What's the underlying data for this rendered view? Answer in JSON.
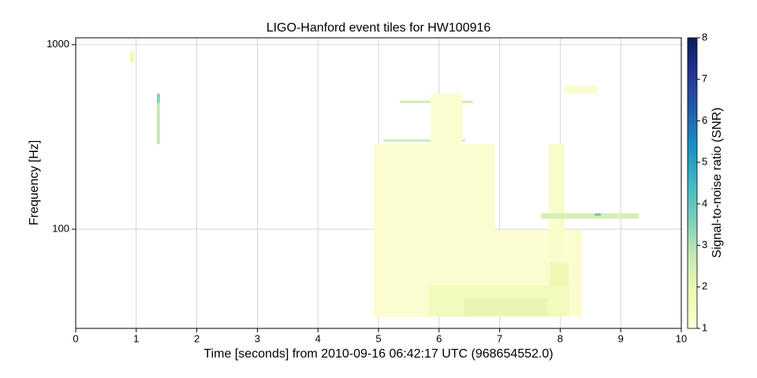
{
  "chart_data": {
    "type": "tiles",
    "title": "LIGO-Hanford event tiles for HW100916",
    "xlabel": "Time [seconds] from 2010-09-16 06:42:17 UTC (968654552.0)",
    "ylabel": "Frequency [Hz]",
    "xlim": [
      0,
      10
    ],
    "xticks": [
      0,
      1,
      2,
      3,
      4,
      5,
      6,
      7,
      8,
      9,
      10
    ],
    "ylim": [
      29,
      1090
    ],
    "yscale": "log",
    "yticks": [
      100,
      1000
    ],
    "grid": true,
    "colorbar_label": "Signal-to-noise ratio (SNR)",
    "clim": [
      1,
      8
    ],
    "cticks": [
      1,
      2,
      3,
      4,
      5,
      6,
      7,
      8
    ],
    "colormap": [
      "#ffffd9",
      "#edf8b1",
      "#c7e9b4",
      "#7fcdbb",
      "#41b6c4",
      "#1d91c0",
      "#225ea8",
      "#253494",
      "#081d58"
    ],
    "tiles": [
      {
        "tstart": 5.35,
        "tend": 6.56,
        "fmin": 483,
        "fmax": 497,
        "snr": 2.5
      },
      {
        "tstart": 5.08,
        "tend": 6.43,
        "fmin": 298,
        "fmax": 307,
        "snr": 2.6
      },
      {
        "tstart": 4.92,
        "tend": 6.92,
        "fmin": 33.5,
        "fmax": 289,
        "snr": 1.2
      },
      {
        "tstart": 5.86,
        "tend": 6.38,
        "fmin": 33.5,
        "fmax": 543,
        "snr": 1.2
      },
      {
        "tstart": 5.0,
        "tend": 8.36,
        "fmin": 33.5,
        "fmax": 99,
        "snr": 1.2
      },
      {
        "tstart": 7.81,
        "tend": 8.07,
        "fmin": 33.5,
        "fmax": 289,
        "snr": 1.3
      },
      {
        "tstart": 5.83,
        "tend": 8.15,
        "fmin": 33.5,
        "fmax": 49.8,
        "snr": 1.6
      },
      {
        "tstart": 6.41,
        "tend": 7.79,
        "fmin": 33.9,
        "fmax": 42.1,
        "snr": 2.0
      },
      {
        "tstart": 7.83,
        "tend": 8.14,
        "fmin": 49.8,
        "fmax": 66.2,
        "snr": 1.8
      },
      {
        "tstart": 8.06,
        "tend": 8.61,
        "fmin": 543,
        "fmax": 604,
        "snr": 1.2
      },
      {
        "tstart": 7.68,
        "tend": 9.3,
        "fmin": 114,
        "fmax": 122,
        "snr": 2.4
      },
      {
        "tstart": 8.57,
        "tend": 8.67,
        "fmin": 118,
        "fmax": 122,
        "snr": 3.8
      },
      {
        "tstart": 0.9,
        "tend": 0.96,
        "fmin": 798,
        "fmax": 925,
        "snr": 1.8
      },
      {
        "tstart": 1.34,
        "tend": 1.39,
        "fmin": 289,
        "fmax": 543,
        "snr": 2.8
      },
      {
        "tstart": 1.34,
        "tend": 1.39,
        "fmin": 483,
        "fmax": 543,
        "snr": 3.5
      }
    ]
  }
}
